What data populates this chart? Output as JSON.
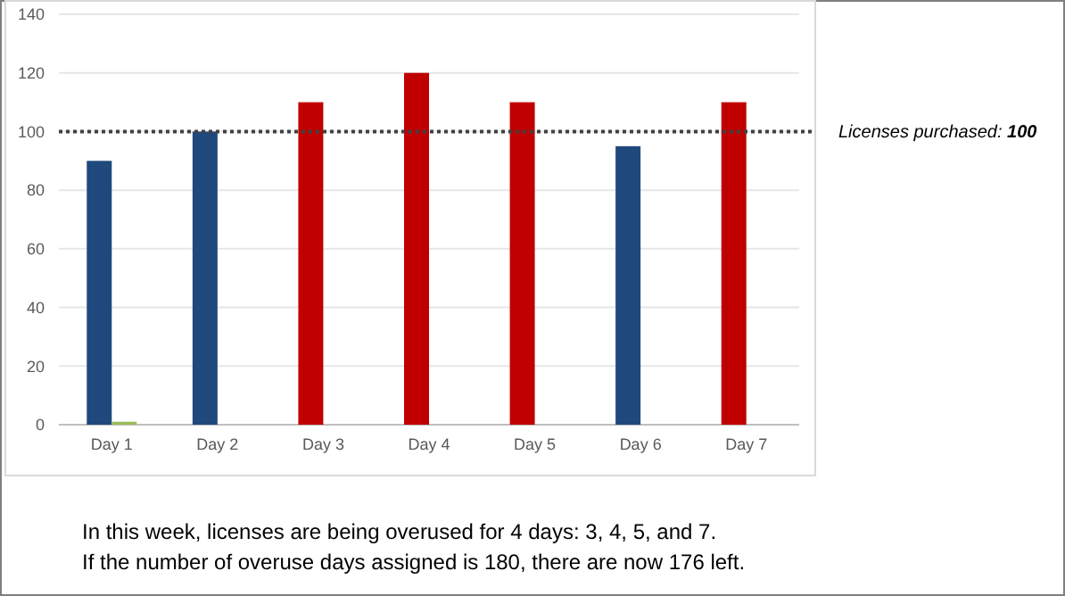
{
  "chart_data": {
    "type": "bar",
    "categories": [
      "Day 1",
      "Day 2",
      "Day 3",
      "Day 4",
      "Day 5",
      "Day 6",
      "Day 7"
    ],
    "series": [
      {
        "colors": [
          "#1f497d",
          "#1f497d",
          "#c00000",
          "#c00000",
          "#c00000",
          "#1f497d",
          "#c00000"
        ],
        "values": [
          90,
          100,
          110,
          120,
          110,
          95,
          110
        ]
      },
      {
        "color": "#9bbb59",
        "values": [
          1,
          0,
          0,
          0,
          0,
          0,
          0
        ]
      }
    ],
    "ylim": [
      0,
      140
    ],
    "yticks": [
      0,
      20,
      40,
      60,
      80,
      100,
      120,
      140
    ],
    "grid": "y",
    "ref_lines": [
      {
        "axis": "y",
        "value": 100,
        "label": "Licenses purchased: 100",
        "color": "#404040",
        "line_style": "dotted"
      }
    ],
    "annotations": [
      "In this week, licenses are being overused for 4 days: 3, 4, 5, and 7.",
      "If the number of overuse days assigned is 180, there are now 176 left."
    ]
  }
}
